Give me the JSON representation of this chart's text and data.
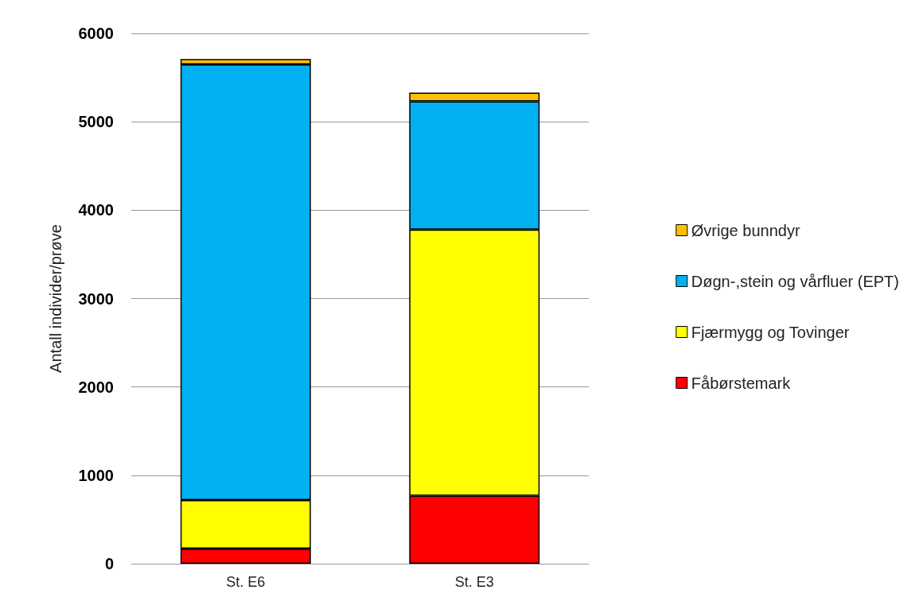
{
  "chart_data": {
    "type": "bar",
    "stacked": true,
    "ylabel": "Antall individer/prøve",
    "categories": [
      "St. E6",
      "St. E3"
    ],
    "series": [
      {
        "name": "Fåbørstemark",
        "color": "#ff0000",
        "values": [
          170,
          770
        ]
      },
      {
        "name": "Fjærmygg og Tovinger",
        "color": "#ffff00",
        "values": [
          550,
          3010
        ]
      },
      {
        "name": "Døgn-,stein og vårfluer (EPT)",
        "color": "#00b0f0",
        "values": [
          4930,
          1450
        ]
      },
      {
        "name": "Øvrige bunndyr",
        "color": "#ffc000",
        "values": [
          60,
          100
        ]
      }
    ],
    "ylim": [
      0,
      6000
    ],
    "yticks": [
      0,
      1000,
      2000,
      3000,
      4000,
      5000,
      6000
    ],
    "grid": "y",
    "legend": "right"
  }
}
